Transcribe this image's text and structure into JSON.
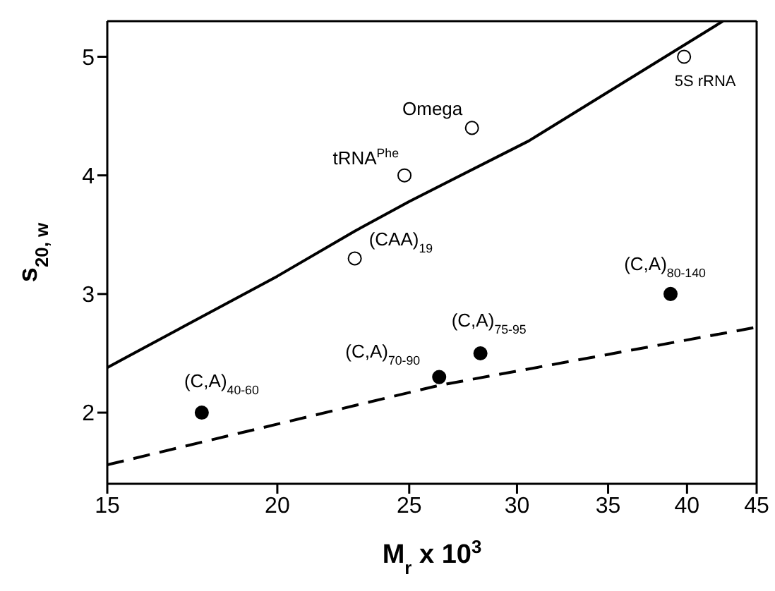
{
  "chart_data": {
    "type": "scatter",
    "xlabel": "M$_{r}$ x 10$^{3}$",
    "ylabel": "s$_{20, w}$",
    "log": "x",
    "xlim": [
      15,
      45
    ],
    "xticks": [
      15,
      20,
      25,
      30,
      35,
      40,
      45
    ],
    "ylim": [
      1.4,
      5.3
    ],
    "yticks": [
      2,
      3,
      4,
      5
    ],
    "series": [
      {
        "color": "#ffffff",
        "marker": "circle",
        "x": [
          22.8,
          24.8,
          27.8,
          39.8
        ],
        "values": [
          3.3,
          4.0,
          4.4,
          5.0
        ]
      },
      {
        "color": "#000000",
        "marker": "circle",
        "x": [
          17.6,
          26.3,
          28.2,
          38.9
        ],
        "values": [
          2.0,
          2.3,
          2.5,
          3.0
        ]
      },
      {
        "type": "line",
        "color": "#000000",
        "marker": "none",
        "line_style": "solid",
        "x": [
          15,
          20,
          22.8,
          25,
          30.6,
          42.5
        ],
        "values": [
          2.38,
          3.15,
          3.53,
          3.78,
          4.29,
          5.3
        ]
      },
      {
        "type": "line",
        "color": "#000000",
        "marker": "none",
        "line_style": "dashed",
        "x": [
          15,
          26.3,
          45
        ],
        "values": [
          1.56,
          2.23,
          2.72
        ]
      }
    ],
    "annotations": [
      {
        "text": "(CAA)$_{19}$",
        "x": 22.8,
        "y": 3.3
      },
      {
        "text": "tRNA$^{Phe}$",
        "x": 24.8,
        "y": 4.0
      },
      {
        "text": "Omega",
        "x": 27.8,
        "y": 4.4
      },
      {
        "text": "5S rRNA",
        "x": 39.8,
        "y": 5.0
      },
      {
        "text": "(C,A)$_{40-60}$",
        "x": 17.6,
        "y": 2.0
      },
      {
        "text": "(C,A)$_{70-90}$",
        "x": 26.3,
        "y": 2.3
      },
      {
        "text": "(C,A)$_{75-95}$",
        "x": 28.2,
        "y": 2.5
      },
      {
        "text": "(C,A)$_{80-140}$",
        "x": 38.9,
        "y": 3.0
      }
    ]
  }
}
